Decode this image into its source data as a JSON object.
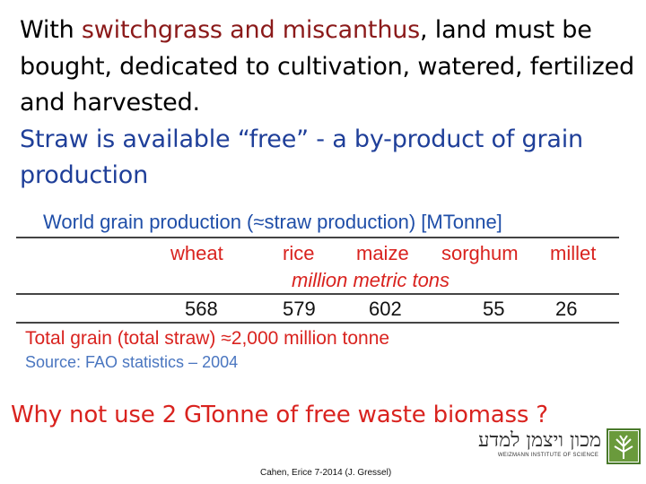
{
  "intro": {
    "part1": "With ",
    "highlight": "switchgrass and miscanthus",
    "part2": ", land must be bought, dedicated to cultivation, watered, fertilized and harvested.",
    "line2": "Straw is available “free” - a by-product of grain production"
  },
  "table": {
    "title": "World grain production (≈straw production) [MTonne]",
    "columns": [
      "wheat",
      "rice",
      "maize",
      "sorghum",
      "millet"
    ],
    "unit": "million metric tons",
    "values": [
      "568",
      "579",
      "602",
      "55",
      "26"
    ],
    "total": "Total grain (total straw) ≈2,000 million tonne",
    "source": "Source:  FAO statistics – 2004"
  },
  "question": "Why not use 2 GTonne of free waste biomass ?",
  "credit": "Cahen, Erice 7-2014 (J. Gressel)",
  "logo": {
    "hebrew": "מכון ויצמן למדע",
    "english": "WEIZMANN INSTITUTE OF SCIENCE"
  },
  "colors": {
    "accent_red": "#d9231f",
    "title_blue": "#1f4ea8",
    "highlight_darkred": "#8b1a1a"
  }
}
